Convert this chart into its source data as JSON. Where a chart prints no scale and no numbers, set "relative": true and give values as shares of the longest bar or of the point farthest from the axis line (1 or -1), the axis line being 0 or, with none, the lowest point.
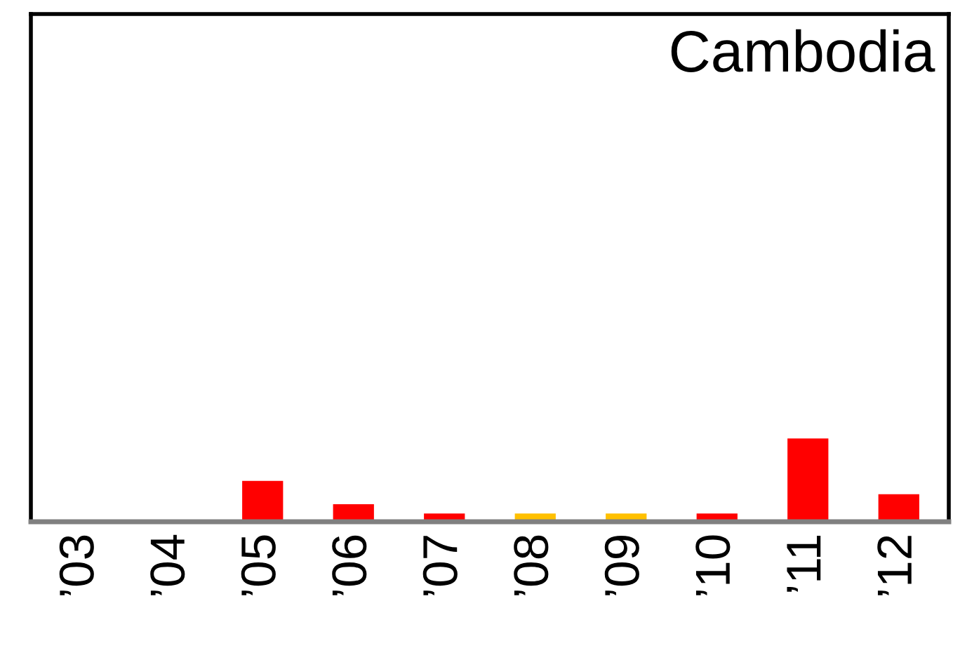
{
  "chart_data": {
    "type": "bar",
    "title": "Cambodia",
    "relative": true,
    "categories": [
      "’03",
      "’04",
      "’05",
      "’06",
      "’07",
      "’08",
      "’09",
      "’10",
      "’11",
      "’12"
    ],
    "values": [
      0,
      0,
      0.49,
      0.21,
      0.1,
      0.1,
      0.1,
      0.1,
      1,
      0.33
    ],
    "colors": [
      "#ff0000",
      "#ff0000",
      "#ff0000",
      "#ff0000",
      "#ff0000",
      "#ffc000",
      "#ffc000",
      "#ff0000",
      "#ff0000",
      "#ff0000"
    ],
    "grid": false,
    "legend": false
  }
}
